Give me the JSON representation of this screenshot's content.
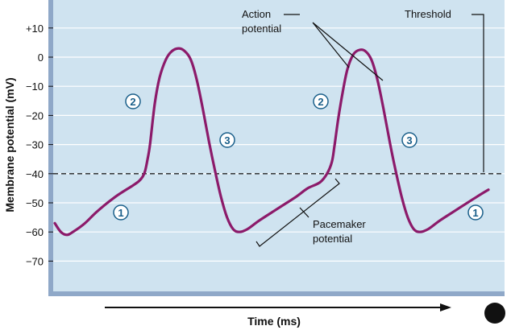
{
  "chart_data": {
    "type": "line",
    "xlabel": "Time (ms)",
    "ylabel": "Membrane potential (mV)",
    "ylim": [
      -80,
      14
    ],
    "grid": true,
    "y_ticks": [
      "+10",
      "0",
      "−10",
      "−20",
      "−30",
      "−40",
      "−50",
      "−60",
      "−70"
    ],
    "y_tick_values": [
      10,
      0,
      -10,
      -20,
      -30,
      -40,
      -50,
      -60,
      -70
    ],
    "series": [
      {
        "values": [
          [
            0,
            -57
          ],
          [
            0.5,
            -60
          ],
          [
            1,
            -61
          ],
          [
            1.5,
            -60
          ],
          [
            2.5,
            -57
          ],
          [
            3.5,
            -53
          ],
          [
            5,
            -48
          ],
          [
            6.5,
            -44
          ],
          [
            7,
            -42.5
          ],
          [
            7.3,
            -41
          ],
          [
            7.5,
            -39
          ],
          [
            7.7,
            -35
          ],
          [
            7.9,
            -30
          ],
          [
            8.3,
            -16
          ],
          [
            8.7,
            -7
          ],
          [
            9.2,
            -1
          ],
          [
            9.7,
            2
          ],
          [
            10.3,
            3
          ],
          [
            10.8,
            2
          ],
          [
            11.3,
            -1
          ],
          [
            11.8,
            -8
          ],
          [
            12.3,
            -18
          ],
          [
            12.8,
            -29
          ],
          [
            13.3,
            -39
          ],
          [
            13.8,
            -48
          ],
          [
            14.3,
            -55
          ],
          [
            14.8,
            -59
          ],
          [
            15.3,
            -60
          ],
          [
            16,
            -59
          ],
          [
            17,
            -56
          ],
          [
            18.5,
            -52
          ],
          [
            20,
            -48
          ],
          [
            21,
            -45
          ],
          [
            22,
            -43
          ],
          [
            22.6,
            -40
          ],
          [
            23,
            -36
          ],
          [
            23.2,
            -31
          ],
          [
            23.5,
            -22
          ],
          [
            23.9,
            -12
          ],
          [
            24.3,
            -4
          ],
          [
            24.8,
            1
          ],
          [
            25.3,
            2.5
          ],
          [
            25.8,
            2
          ],
          [
            26.3,
            -1
          ],
          [
            26.8,
            -8
          ],
          [
            27.3,
            -18
          ],
          [
            27.8,
            -29
          ],
          [
            28.3,
            -39
          ],
          [
            28.8,
            -48
          ],
          [
            29.3,
            -55
          ],
          [
            29.8,
            -59
          ],
          [
            30.3,
            -60
          ],
          [
            31,
            -59
          ],
          [
            32,
            -56
          ],
          [
            33.5,
            -52
          ],
          [
            35,
            -48
          ],
          [
            36,
            -45.5
          ]
        ]
      }
    ],
    "threshold_mV": -40,
    "annotations": {
      "action_potential": [
        "Action",
        "potential"
      ],
      "threshold": "Threshold",
      "pacemaker": [
        "Pacemaker",
        "potential"
      ],
      "phases": [
        "1",
        "2",
        "3",
        "1",
        "2",
        "3",
        "1"
      ]
    },
    "colors": {
      "curve": "#8c1a6a",
      "plot_bg": "#cfe3f0",
      "grid": "#ffffff",
      "axis_frame": "#8fa8c8",
      "threshold": "#222222",
      "phase_circle": "#1a5f8a"
    }
  }
}
